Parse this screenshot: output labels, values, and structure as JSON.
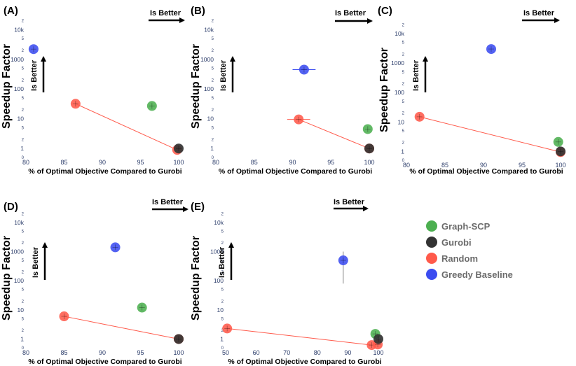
{
  "legend": [
    {
      "name": "Graph-SCP",
      "color": "#4caf50"
    },
    {
      "name": "Gurobi",
      "color": "#333333"
    },
    {
      "name": "Random",
      "color": "#ff5a4b"
    },
    {
      "name": "Greedy Baseline",
      "color": "#3b4cf0"
    }
  ],
  "better_x": "Is Better",
  "better_y": "Is Better",
  "chart_data": [
    {
      "id": "A",
      "label": "(A)",
      "type": "scatter",
      "xlabel": "% of Optimal Objective Compared to Gurobi",
      "ylabel": "Speedup Factor",
      "xlim": [
        80,
        100
      ],
      "xticks": [
        "80",
        "85",
        "90",
        "95",
        "100"
      ],
      "ylim_log": [
        0.5,
        30000
      ],
      "points": [
        {
          "series": "Greedy Baseline",
          "x": 81,
          "y": 2200
        },
        {
          "series": "Graph-SCP",
          "x": 96.5,
          "y": 27
        },
        {
          "series": "Random",
          "x": 86.5,
          "y": 32
        },
        {
          "series": "Random",
          "x": 99.8,
          "y": 0.9
        },
        {
          "series": "Gurobi",
          "x": 100,
          "y": 1
        }
      ],
      "line": {
        "series": "Random",
        "points": [
          [
            86.5,
            32
          ],
          [
            99.8,
            0.9
          ]
        ]
      }
    },
    {
      "id": "B",
      "label": "(B)",
      "type": "scatter",
      "xlabel": "% of Optimal Objective Compared to Gurobi",
      "ylabel": "Speedup Factor",
      "xlim": [
        80,
        100
      ],
      "xticks": [
        "80",
        "85",
        "90",
        "95",
        "100"
      ],
      "ylim_log": [
        0.5,
        30000
      ],
      "points": [
        {
          "series": "Greedy Baseline",
          "x": 91.5,
          "y": 450,
          "xerr": 1.5
        },
        {
          "series": "Graph-SCP",
          "x": 99.8,
          "y": 4.5
        },
        {
          "series": "Random",
          "x": 90.8,
          "y": 9.5,
          "xerr": 1.5
        },
        {
          "series": "Random",
          "x": 100,
          "y": 1
        },
        {
          "series": "Gurobi",
          "x": 100,
          "y": 1
        }
      ],
      "line": {
        "series": "Random",
        "points": [
          [
            90.8,
            9.5
          ],
          [
            100,
            1
          ]
        ]
      }
    },
    {
      "id": "C",
      "label": "(C)",
      "type": "scatter",
      "xlabel": "% of Optimal Objective Compared to Gurobi",
      "ylabel": "Speedup Factor",
      "xlim": [
        80,
        100
      ],
      "xticks": [
        "80",
        "85",
        "90",
        "95",
        "100"
      ],
      "ylim_log": [
        0.5,
        30000
      ],
      "points": [
        {
          "series": "Greedy Baseline",
          "x": 91,
          "y": 3000
        },
        {
          "series": "Graph-SCP",
          "x": 99.7,
          "y": 2.1
        },
        {
          "series": "Random",
          "x": 81.7,
          "y": 15
        },
        {
          "series": "Random",
          "x": 100,
          "y": 0.95
        },
        {
          "series": "Gurobi",
          "x": 100,
          "y": 1
        }
      ],
      "line": {
        "series": "Random",
        "points": [
          [
            81.7,
            15
          ],
          [
            100,
            0.95
          ]
        ]
      }
    },
    {
      "id": "D",
      "label": "(D)",
      "type": "scatter",
      "xlabel": "% of Optimal Objective Compared to Gurobi",
      "ylabel": "Speedup Factor",
      "xlim": [
        80,
        100
      ],
      "xticks": [
        "80",
        "85",
        "90",
        "95",
        "100"
      ],
      "ylim_log": [
        0.5,
        30000
      ],
      "points": [
        {
          "series": "Greedy Baseline",
          "x": 91.7,
          "y": 1400
        },
        {
          "series": "Graph-SCP",
          "x": 95.2,
          "y": 12
        },
        {
          "series": "Random",
          "x": 85,
          "y": 6
        },
        {
          "series": "Random",
          "x": 100,
          "y": 1
        },
        {
          "series": "Gurobi",
          "x": 100,
          "y": 1
        }
      ],
      "line": {
        "series": "Random",
        "points": [
          [
            85,
            6
          ],
          [
            100,
            1
          ]
        ]
      }
    },
    {
      "id": "E",
      "label": "(E)",
      "type": "scatter",
      "xlabel": "% of Optimal Objective Compared to Gurobi",
      "ylabel": "Speedup Factor",
      "xlim": [
        50,
        100
      ],
      "xticks": [
        "50",
        "60",
        "70",
        "80",
        "90",
        "100"
      ],
      "ylim_log": [
        0.5,
        30000
      ],
      "points": [
        {
          "series": "Greedy Baseline",
          "x": 88.5,
          "y": 500,
          "yerr": [
            80,
            1000
          ]
        },
        {
          "series": "Graph-SCP",
          "x": 99,
          "y": 1.5
        },
        {
          "series": "Random",
          "x": 50.5,
          "y": 2.3
        },
        {
          "series": "Random",
          "x": 97.8,
          "y": 0.62
        },
        {
          "series": "Random",
          "x": 99.8,
          "y": 0.65
        },
        {
          "series": "Gurobi",
          "x": 100,
          "y": 1
        }
      ],
      "line": {
        "series": "Random",
        "points": [
          [
            50.5,
            2.3
          ],
          [
            97.8,
            0.62
          ]
        ]
      }
    }
  ]
}
